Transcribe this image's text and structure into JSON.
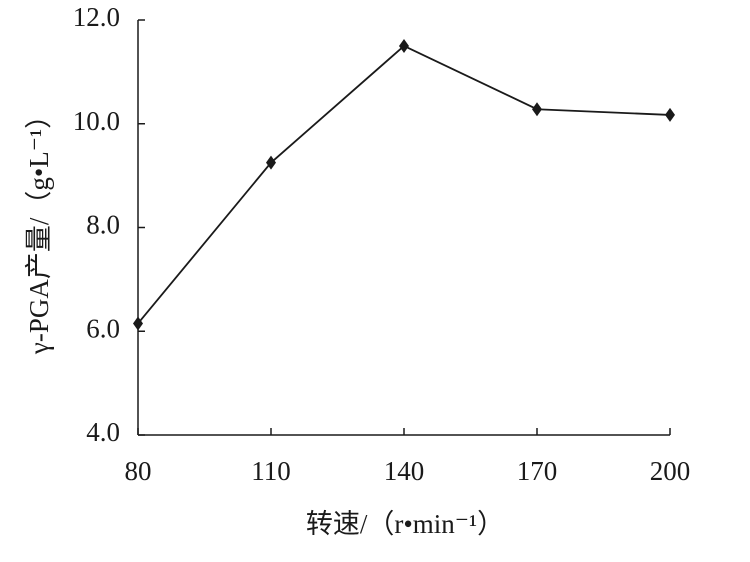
{
  "chart_data": {
    "type": "line",
    "x_label": "转速/（r•min⁻¹）",
    "y_label": "γ-PGA产量/（g•L⁻¹）",
    "x": [
      80,
      110,
      140,
      170,
      200
    ],
    "series": [
      {
        "name": null,
        "color": "#1a1a1a",
        "values": [
          6.15,
          9.25,
          11.5,
          10.28,
          10.17
        ]
      }
    ],
    "xlim": [
      80,
      200
    ],
    "xticks": [
      80,
      110,
      140,
      170,
      200
    ],
    "ylim": [
      4,
      12
    ],
    "yticks": [
      {
        "value": 4,
        "label": "4.0"
      },
      {
        "value": 6,
        "label": "6.0"
      },
      {
        "value": 8,
        "label": "8.0"
      },
      {
        "value": 10,
        "label": "10.0"
      },
      {
        "value": 12,
        "label": "12.0"
      }
    ]
  }
}
